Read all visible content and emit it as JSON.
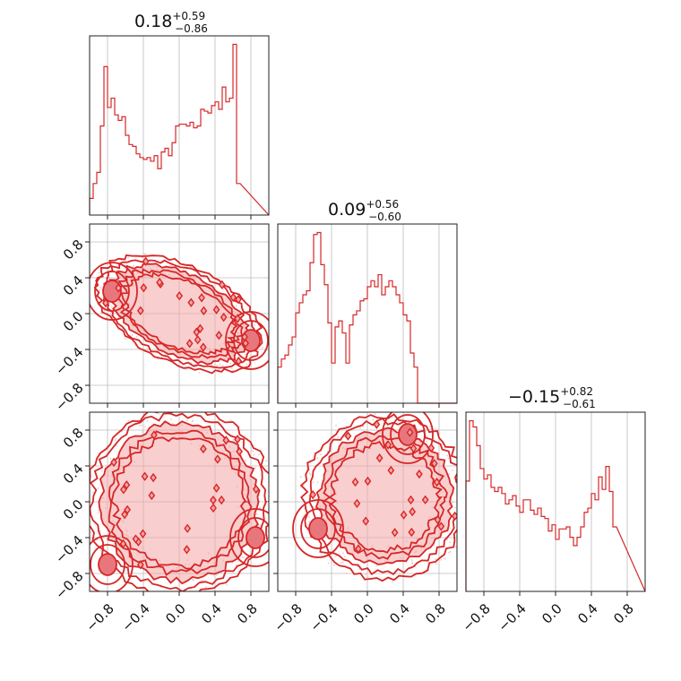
{
  "figure": {
    "titles": [
      {
        "value": "0.18",
        "plus": "+0.59",
        "minus": "−0.86"
      },
      {
        "value": "0.09",
        "plus": "+0.56",
        "minus": "−0.60"
      },
      {
        "value": "−0.15",
        "plus": "+0.82",
        "minus": "−0.61"
      }
    ]
  },
  "chart_data": {
    "type": "corner",
    "parameters": 3,
    "xlim": [
      -1.0,
      1.0
    ],
    "ylim": [
      -1.0,
      1.0
    ],
    "ticks": [
      -0.8,
      -0.4,
      0.0,
      0.4,
      0.8
    ],
    "tick_labels": [
      "−0.8",
      "−0.4",
      "0.0",
      "0.4",
      "0.8"
    ],
    "grid": true,
    "color": "#d62728",
    "fill_color": "#f4a6a6",
    "histograms": [
      {
        "param": 1,
        "bin_edges_start": -1.0,
        "bin_width": 0.04,
        "counts": [
          9,
          17,
          23,
          48,
          80,
          58,
          63,
          54,
          51,
          53,
          43,
          38,
          37,
          33,
          31,
          30,
          31,
          29,
          32,
          25,
          34,
          36,
          32,
          39,
          48,
          49,
          49,
          48,
          50,
          47,
          48,
          57,
          56,
          55,
          59,
          61,
          57,
          69,
          61,
          63,
          92,
          17
        ]
      },
      {
        "param": 2,
        "bin_edges_start": -1.0,
        "bin_width": 0.04,
        "counts": [
          18,
          22,
          24,
          29,
          33,
          45,
          50,
          54,
          56,
          70,
          84,
          85,
          69,
          59,
          40,
          20,
          38,
          41,
          35,
          20,
          39,
          44,
          46,
          51,
          52,
          58,
          61,
          58,
          64,
          54,
          58,
          61,
          58,
          54,
          50,
          44,
          41,
          25,
          18,
          0
        ]
      },
      {
        "param": 3,
        "bin_edges_start": -1.0,
        "bin_width": 0.04,
        "counts": [
          53,
          82,
          79,
          70,
          59,
          54,
          56,
          50,
          48,
          50,
          47,
          42,
          44,
          46,
          41,
          38,
          44,
          44,
          39,
          37,
          40,
          36,
          35,
          29,
          32,
          25,
          30,
          30,
          31,
          26,
          22,
          26,
          31,
          38,
          40,
          47,
          44,
          55,
          49,
          60,
          48,
          31
        ]
      }
    ],
    "joint": [
      {
        "pair": [
          1,
          2
        ],
        "shape": "ring",
        "ring_radius": 0.82,
        "axis_angle_deg": -26,
        "modes": [
          [
            -0.75,
            0.25
          ],
          [
            0.8,
            -0.3
          ]
        ]
      },
      {
        "pair": [
          1,
          3
        ],
        "shape": "ring",
        "ring_radius": 0.88,
        "modes": [
          [
            -0.8,
            -0.7
          ],
          [
            0.85,
            -0.4
          ]
        ]
      },
      {
        "pair": [
          2,
          3
        ],
        "shape": "ring",
        "ring_radius": 0.75,
        "center": [
          0.2,
          0.05
        ],
        "modes": [
          [
            -0.55,
            -0.3
          ],
          [
            0.45,
            0.75
          ]
        ]
      }
    ]
  }
}
